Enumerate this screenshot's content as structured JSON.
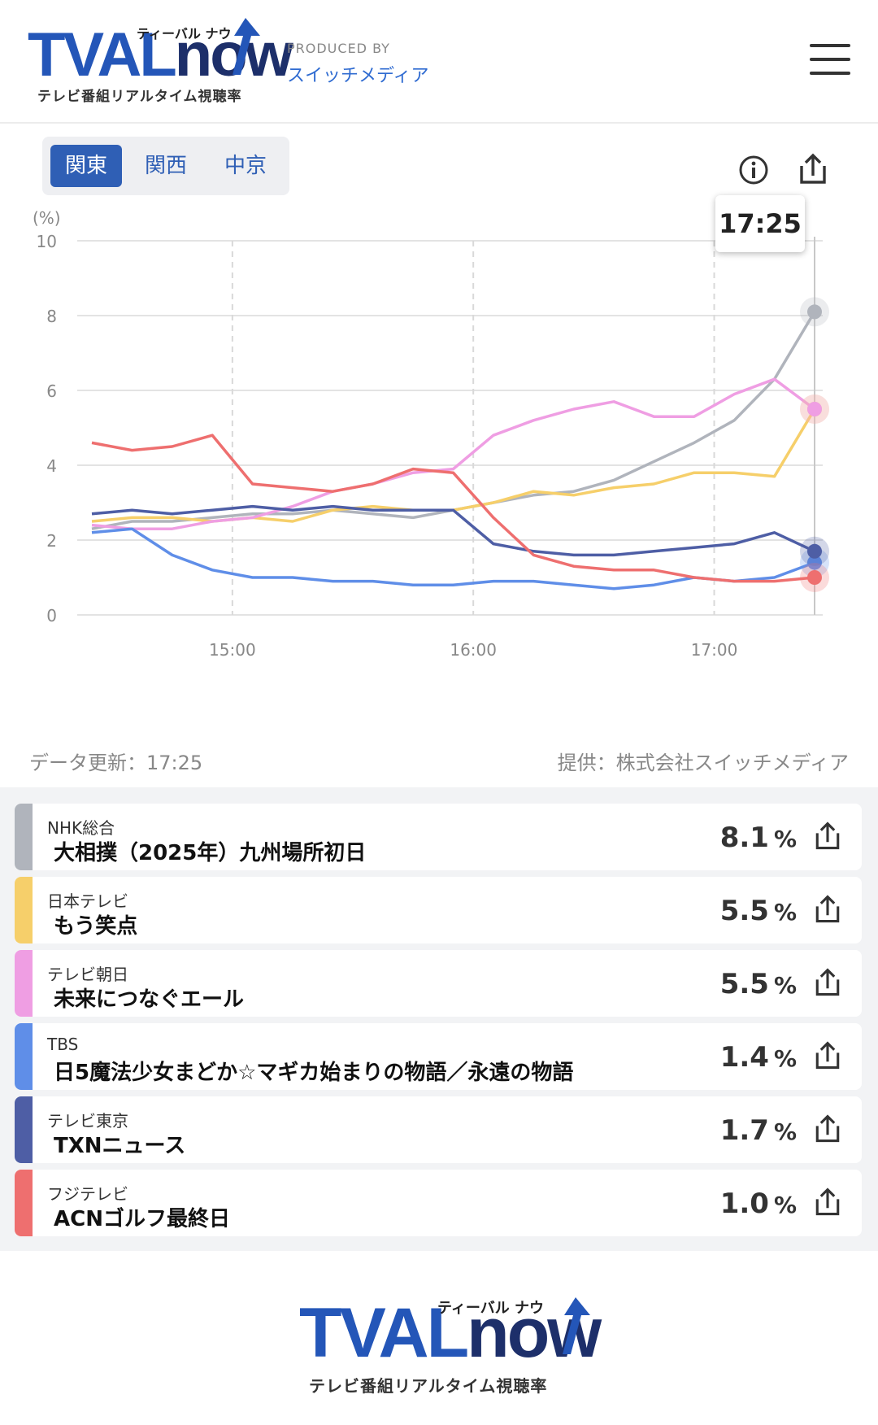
{
  "header": {
    "logo_main": "TVAL",
    "logo_now": "now",
    "logo_kana": "ティーバル ナウ",
    "logo_sub": "テレビ番組リアルタイム視聴率",
    "produced_label": "PRODUCED BY",
    "produced_name": "スイッチメディア"
  },
  "region_tabs": [
    {
      "label": "関東",
      "active": true
    },
    {
      "label": "関西",
      "active": false
    },
    {
      "label": "中京",
      "active": false
    }
  ],
  "tooltip_time": "17:25",
  "chart_data": {
    "type": "line",
    "ylabel": "(%)",
    "ylim": [
      0,
      10
    ],
    "y_ticks": [
      "0",
      "2",
      "4",
      "6",
      "8",
      "10"
    ],
    "x_ticks": [
      "15:00",
      "16:00",
      "17:00"
    ],
    "x": [
      "14:25",
      "14:35",
      "14:45",
      "14:55",
      "15:05",
      "15:15",
      "15:25",
      "15:35",
      "15:45",
      "15:55",
      "16:05",
      "16:15",
      "16:25",
      "16:35",
      "16:45",
      "16:55",
      "17:05",
      "17:15",
      "17:25"
    ],
    "series": [
      {
        "name": "NHK総合",
        "color": "#b0b4bc",
        "values": [
          2.3,
          2.5,
          2.5,
          2.6,
          2.7,
          2.7,
          2.8,
          2.7,
          2.6,
          2.8,
          3.0,
          3.2,
          3.3,
          3.6,
          4.1,
          4.6,
          5.2,
          6.3,
          8.1
        ]
      },
      {
        "name": "日本テレビ",
        "color": "#f6cf6a",
        "values": [
          2.5,
          2.6,
          2.6,
          2.5,
          2.6,
          2.5,
          2.8,
          2.9,
          2.8,
          2.8,
          3.0,
          3.3,
          3.2,
          3.4,
          3.5,
          3.8,
          3.8,
          3.7,
          5.5
        ]
      },
      {
        "name": "テレビ朝日",
        "color": "#ef9ee3",
        "values": [
          2.4,
          2.3,
          2.3,
          2.5,
          2.6,
          2.9,
          3.3,
          3.5,
          3.8,
          3.9,
          4.8,
          5.2,
          5.5,
          5.7,
          5.3,
          5.3,
          5.9,
          6.3,
          5.5
        ]
      },
      {
        "name": "TBS",
        "color": "#5f8ee8",
        "values": [
          2.2,
          2.3,
          1.6,
          1.2,
          1.0,
          1.0,
          0.9,
          0.9,
          0.8,
          0.8,
          0.9,
          0.9,
          0.8,
          0.7,
          0.8,
          1.0,
          0.9,
          1.0,
          1.4
        ]
      },
      {
        "name": "テレビ東京",
        "color": "#4e5ea5",
        "values": [
          2.7,
          2.8,
          2.7,
          2.8,
          2.9,
          2.8,
          2.9,
          2.8,
          2.8,
          2.8,
          1.9,
          1.7,
          1.6,
          1.6,
          1.7,
          1.8,
          1.9,
          2.2,
          1.7
        ]
      },
      {
        "name": "フジテレビ",
        "color": "#ee6f6f",
        "values": [
          4.6,
          4.4,
          4.5,
          4.8,
          3.5,
          3.4,
          3.3,
          3.5,
          3.9,
          3.8,
          2.6,
          1.6,
          1.3,
          1.2,
          1.2,
          1.0,
          0.9,
          0.9,
          1.0
        ]
      }
    ]
  },
  "footnotes": {
    "updated": "データ更新：17:25",
    "source": "提供：株式会社スイッチメディア"
  },
  "programs": [
    {
      "channel": "NHK総合",
      "title": "大相撲（2025年）九州場所初日",
      "rate": "8.1",
      "unit": "%",
      "color": "#b0b4bc"
    },
    {
      "channel": "日本テレビ",
      "title": "もう笑点",
      "rate": "5.5",
      "unit": "%",
      "color": "#f6cf6a"
    },
    {
      "channel": "テレビ朝日",
      "title": "未来につなぐエール",
      "rate": "5.5",
      "unit": "%",
      "color": "#ef9ee3"
    },
    {
      "channel": "TBS",
      "title": "日5魔法少女まどか☆マギカ始まりの物語／永遠の物語",
      "rate": "1.4",
      "unit": "%",
      "color": "#5f8ee8"
    },
    {
      "channel": "テレビ東京",
      "title": "TXNニュース",
      "rate": "1.7",
      "unit": "%",
      "color": "#4e5ea5"
    },
    {
      "channel": "フジテレビ",
      "title": "ACNゴルフ最終日",
      "rate": "1.0",
      "unit": "%",
      "color": "#ee6f6f"
    }
  ]
}
